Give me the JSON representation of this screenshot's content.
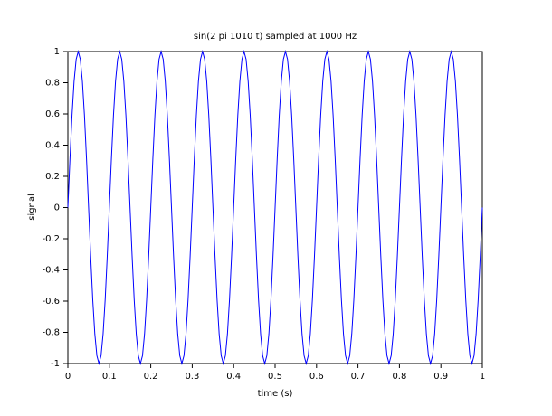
{
  "chart_data": {
    "type": "line",
    "title": "sin(2 pi 1010 t) sampled at 1000 Hz",
    "x_label": "time (s)",
    "y_label": "signal",
    "x": [
      0,
      0.005,
      0.01,
      0.015,
      0.02,
      0.025,
      0.03,
      0.035,
      0.04,
      0.045,
      0.05,
      0.055,
      0.06,
      0.065,
      0.07,
      0.075,
      0.08,
      0.085,
      0.09,
      0.095,
      0.1,
      0.105,
      0.11,
      0.115,
      0.12,
      0.125,
      0.13,
      0.135,
      0.14,
      0.145,
      0.15,
      0.155,
      0.16,
      0.165,
      0.17,
      0.175,
      0.18,
      0.185,
      0.19,
      0.195,
      0.2,
      0.205,
      0.21,
      0.215,
      0.22,
      0.225,
      0.23,
      0.235,
      0.24,
      0.245,
      0.25,
      0.255,
      0.26,
      0.265,
      0.27,
      0.275,
      0.28,
      0.285,
      0.29,
      0.295,
      0.3,
      0.305,
      0.31,
      0.315,
      0.32,
      0.325,
      0.33,
      0.335,
      0.34,
      0.345,
      0.35,
      0.355,
      0.36,
      0.365,
      0.37,
      0.375,
      0.38,
      0.385,
      0.39,
      0.395,
      0.4,
      0.405,
      0.41,
      0.415,
      0.42,
      0.425,
      0.43,
      0.435,
      0.44,
      0.445,
      0.45,
      0.455,
      0.46,
      0.465,
      0.47,
      0.475,
      0.48,
      0.485,
      0.49,
      0.495,
      0.5,
      0.505,
      0.51,
      0.515,
      0.52,
      0.525,
      0.53,
      0.535,
      0.54,
      0.545,
      0.55,
      0.555,
      0.56,
      0.565,
      0.57,
      0.575,
      0.58,
      0.585,
      0.59,
      0.595,
      0.6,
      0.605,
      0.61,
      0.615,
      0.62,
      0.625,
      0.63,
      0.635,
      0.64,
      0.645,
      0.65,
      0.655,
      0.66,
      0.665,
      0.67,
      0.675,
      0.68,
      0.685,
      0.69,
      0.695,
      0.7,
      0.705,
      0.71,
      0.715,
      0.72,
      0.725,
      0.73,
      0.735,
      0.74,
      0.745,
      0.75,
      0.755,
      0.76,
      0.765,
      0.77,
      0.775,
      0.78,
      0.785,
      0.79,
      0.795,
      0.8,
      0.805,
      0.81,
      0.815,
      0.82,
      0.825,
      0.83,
      0.835,
      0.84,
      0.845,
      0.85,
      0.855,
      0.86,
      0.865,
      0.87,
      0.875,
      0.88,
      0.885,
      0.89,
      0.895,
      0.9,
      0.905,
      0.91,
      0.915,
      0.92,
      0.925,
      0.93,
      0.935,
      0.94,
      0.945,
      0.95,
      0.955,
      0.96,
      0.965,
      0.97,
      0.975,
      0.98,
      0.985,
      0.99,
      0.995,
      1
    ],
    "series": [
      {
        "color": "#0000ff",
        "values": [
          0,
          0.31,
          0.59,
          0.81,
          0.95,
          1,
          0.95,
          0.81,
          0.59,
          0.31,
          0,
          -0.31,
          -0.59,
          -0.81,
          -0.95,
          -1,
          -0.95,
          -0.81,
          -0.59,
          -0.31,
          0,
          0.31,
          0.59,
          0.81,
          0.95,
          1,
          0.95,
          0.81,
          0.59,
          0.31,
          0,
          -0.31,
          -0.59,
          -0.81,
          -0.95,
          -1,
          -0.95,
          -0.81,
          -0.59,
          -0.31,
          0,
          0.31,
          0.59,
          0.81,
          0.95,
          1,
          0.95,
          0.81,
          0.59,
          0.31,
          0,
          -0.31,
          -0.59,
          -0.81,
          -0.95,
          -1,
          -0.95,
          -0.81,
          -0.59,
          -0.31,
          0,
          0.31,
          0.59,
          0.81,
          0.95,
          1,
          0.95,
          0.81,
          0.59,
          0.31,
          0,
          -0.31,
          -0.59,
          -0.81,
          -0.95,
          -1,
          -0.95,
          -0.81,
          -0.59,
          -0.31,
          0,
          0.31,
          0.59,
          0.81,
          0.95,
          1,
          0.95,
          0.81,
          0.59,
          0.31,
          0,
          -0.31,
          -0.59,
          -0.81,
          -0.95,
          -1,
          -0.95,
          -0.81,
          -0.59,
          -0.31,
          0,
          0.31,
          0.59,
          0.81,
          0.95,
          1,
          0.95,
          0.81,
          0.59,
          0.31,
          0,
          -0.31,
          -0.59,
          -0.81,
          -0.95,
          -1,
          -0.95,
          -0.81,
          -0.59,
          -0.31,
          0,
          0.31,
          0.59,
          0.81,
          0.95,
          1,
          0.95,
          0.81,
          0.59,
          0.31,
          0,
          -0.31,
          -0.59,
          -0.81,
          -0.95,
          -1,
          -0.95,
          -0.81,
          -0.59,
          -0.31,
          0,
          0.31,
          0.59,
          0.81,
          0.95,
          1,
          0.95,
          0.81,
          0.59,
          0.31,
          0,
          -0.31,
          -0.59,
          -0.81,
          -0.95,
          -1,
          -0.95,
          -0.81,
          -0.59,
          -0.31,
          0,
          0.31,
          0.59,
          0.81,
          0.95,
          1,
          0.95,
          0.81,
          0.59,
          0.31,
          0,
          -0.31,
          -0.59,
          -0.81,
          -0.95,
          -1,
          -0.95,
          -0.81,
          -0.59,
          -0.31,
          0,
          0.31,
          0.59,
          0.81,
          0.95,
          1,
          0.95,
          0.81,
          0.59,
          0.31,
          0,
          -0.31,
          -0.59,
          -0.81,
          -0.95,
          -1,
          -0.95,
          -0.81,
          -0.59,
          -0.31,
          0
        ]
      }
    ],
    "xlim": [
      0,
      1
    ],
    "xticks": [
      0,
      0.1,
      0.2,
      0.3,
      0.4,
      0.5,
      0.6,
      0.7,
      0.8,
      0.9,
      1
    ],
    "ylim": [
      -1,
      1
    ],
    "yticks": [
      -1,
      -0.8,
      -0.6,
      -0.4,
      -0.2,
      0,
      0.2,
      0.4,
      0.6,
      0.8,
      1
    ],
    "grid": false
  }
}
